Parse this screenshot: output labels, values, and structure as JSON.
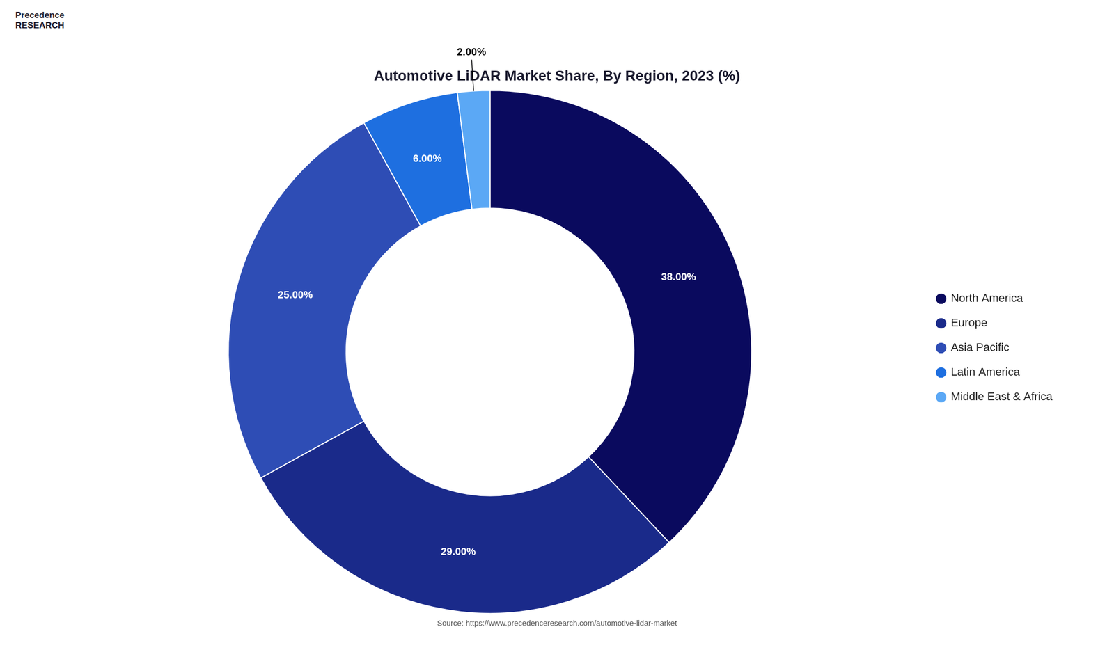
{
  "chart_data": {
    "type": "doughnut",
    "title": "Automotive LiDAR Market Share, By Region, 2023 (%)",
    "categories": [
      "North America",
      "Europe",
      "Asia Pacific",
      "Latin America",
      "Middle East & Africa"
    ],
    "values": [
      38.0,
      29.0,
      25.0,
      6.0,
      2.0
    ],
    "value_labels": [
      "38.00%",
      "29.00%",
      "25.00%",
      "6.00%",
      "2.00%"
    ],
    "colors": [
      "#0a0a5e",
      "#1a2a8a",
      "#2e4db5",
      "#1e6fe0",
      "#5ba8f5"
    ],
    "data_labels": true,
    "legend": "right",
    "annotations": [
      "Precedence\nRESEARCH",
      "Source: https://www.precedenceresearch.com/automotive-lidar-market"
    ]
  }
}
